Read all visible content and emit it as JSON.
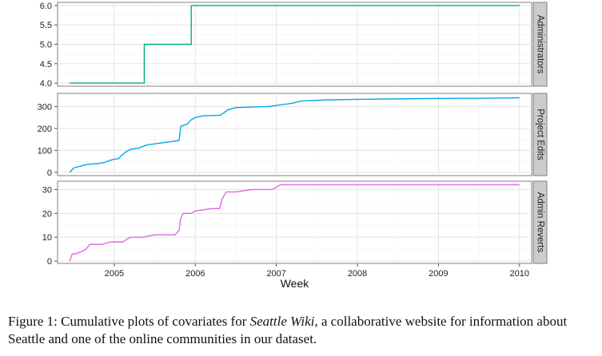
{
  "chart_data": {
    "type": "line",
    "xlabel": "Week",
    "x_ticks": [
      "2005",
      "2006",
      "2007",
      "2008",
      "2009",
      "2010"
    ],
    "xlim": [
      2004.3,
      2010.15
    ],
    "grid": true,
    "legend": "none",
    "facets": [
      {
        "strip": "Administrators",
        "color": "#00b36b",
        "ylim": [
          3.92,
          6.08
        ],
        "y_ticks": [
          4.0,
          4.5,
          5.0,
          5.5,
          6.0
        ],
        "y_tick_labels": [
          "4.0",
          "4.5",
          "5.0",
          "5.5",
          "6.0"
        ],
        "x": [
          2004.45,
          2005.37,
          2005.37,
          2005.95,
          2005.95,
          2010.0
        ],
        "y": [
          4,
          4,
          5,
          5,
          6,
          6
        ]
      },
      {
        "strip": "Project Edits",
        "color": "#00a9e6",
        "ylim": [
          -15,
          360
        ],
        "y_ticks": [
          0,
          100,
          200,
          300
        ],
        "y_tick_labels": [
          "0",
          "100",
          "200",
          "300"
        ],
        "x": [
          2004.45,
          2004.5,
          2004.55,
          2004.6,
          2004.65,
          2004.72,
          2004.8,
          2004.88,
          2004.95,
          2005.0,
          2005.05,
          2005.1,
          2005.15,
          2005.2,
          2005.3,
          2005.4,
          2005.5,
          2005.6,
          2005.7,
          2005.8,
          2005.82,
          2005.9,
          2005.95,
          2006.0,
          2006.1,
          2006.3,
          2006.35,
          2006.4,
          2006.5,
          2006.7,
          2006.9,
          2007.0,
          2007.2,
          2007.3,
          2007.6,
          2008.0,
          2008.5,
          2009.0,
          2009.5,
          2010.0
        ],
        "y": [
          0,
          20,
          25,
          30,
          35,
          38,
          40,
          45,
          55,
          60,
          62,
          80,
          95,
          105,
          110,
          125,
          130,
          135,
          140,
          145,
          210,
          220,
          240,
          250,
          258,
          260,
          270,
          285,
          295,
          298,
          300,
          305,
          315,
          325,
          330,
          333,
          335,
          337,
          338,
          340
        ]
      },
      {
        "strip": "Admin Reverts",
        "color": "#e066e8",
        "ylim": [
          -1,
          33.5
        ],
        "y_ticks": [
          0,
          10,
          20,
          30
        ],
        "y_tick_labels": [
          "0",
          "10",
          "20",
          "30"
        ],
        "x": [
          2004.45,
          2004.48,
          2004.52,
          2004.6,
          2004.65,
          2004.7,
          2004.85,
          2004.95,
          2005.1,
          2005.2,
          2005.35,
          2005.5,
          2005.75,
          2005.8,
          2005.82,
          2005.85,
          2005.95,
          2006.0,
          2006.2,
          2006.3,
          2006.33,
          2006.38,
          2006.5,
          2006.7,
          2006.95,
          2007.0,
          2007.05,
          2007.5,
          2008.0,
          2009.0,
          2010.0
        ],
        "y": [
          0,
          3,
          3,
          4,
          5,
          7,
          7,
          8,
          8,
          10,
          10,
          11,
          11,
          13,
          18,
          20,
          20,
          21,
          22,
          22,
          26,
          29,
          29,
          30,
          30,
          31,
          32,
          32,
          32,
          32,
          32
        ]
      }
    ]
  },
  "caption": {
    "prefix": "Figure 1: Cumulative plots of covariates for ",
    "emphasis": "Seattle Wiki",
    "suffix": ", a collaborative website for information about Seattle and one of the online communities in our dataset."
  }
}
